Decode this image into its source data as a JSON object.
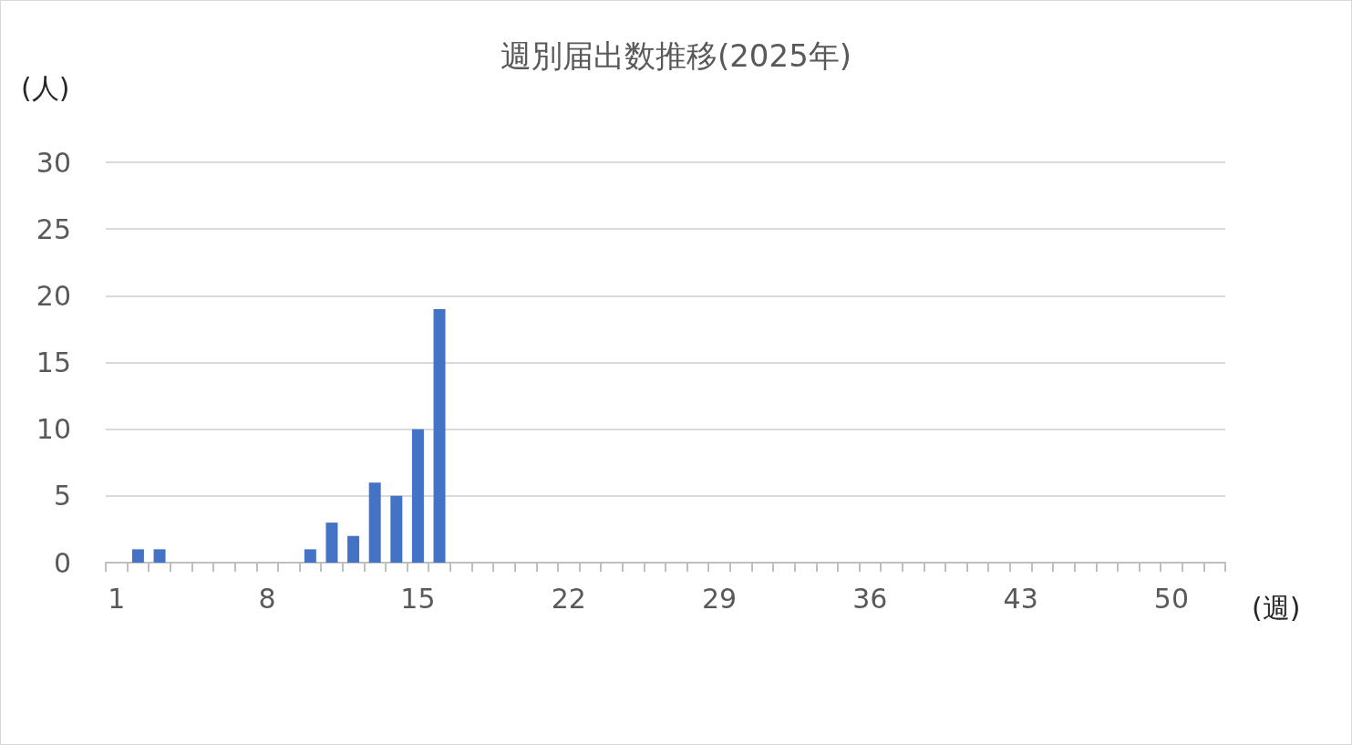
{
  "chart_data": {
    "type": "bar",
    "title": "週別届出数推移(2025年)",
    "ylabel": "(人)",
    "xlabel": "(週)",
    "categories": [
      "1",
      null,
      null,
      null,
      null,
      null,
      null,
      "8",
      null,
      null,
      null,
      null,
      null,
      null,
      "15",
      null,
      null,
      null,
      null,
      null,
      null,
      "22",
      null,
      null,
      null,
      null,
      null,
      null,
      "29",
      null,
      null,
      null,
      null,
      null,
      null,
      "36",
      null,
      null,
      null,
      null,
      null,
      null,
      "43",
      null,
      null,
      null,
      null,
      null,
      null,
      "50",
      null,
      null
    ],
    "values": [
      0,
      1,
      1,
      0,
      0,
      0,
      0,
      0,
      0,
      1,
      3,
      2,
      6,
      5,
      10,
      19,
      null,
      null,
      null,
      null,
      null,
      null,
      null,
      null,
      null,
      null,
      null,
      null,
      null,
      null,
      null,
      null,
      null,
      null,
      null,
      null,
      null,
      null,
      null,
      null,
      null,
      null,
      null,
      null,
      null,
      null,
      null,
      null,
      null,
      null,
      null,
      null
    ],
    "color": "#4472c4",
    "ylim": [
      0,
      30
    ],
    "yticks": [
      0,
      5,
      10,
      15,
      20,
      25,
      30
    ],
    "grid": "y"
  }
}
